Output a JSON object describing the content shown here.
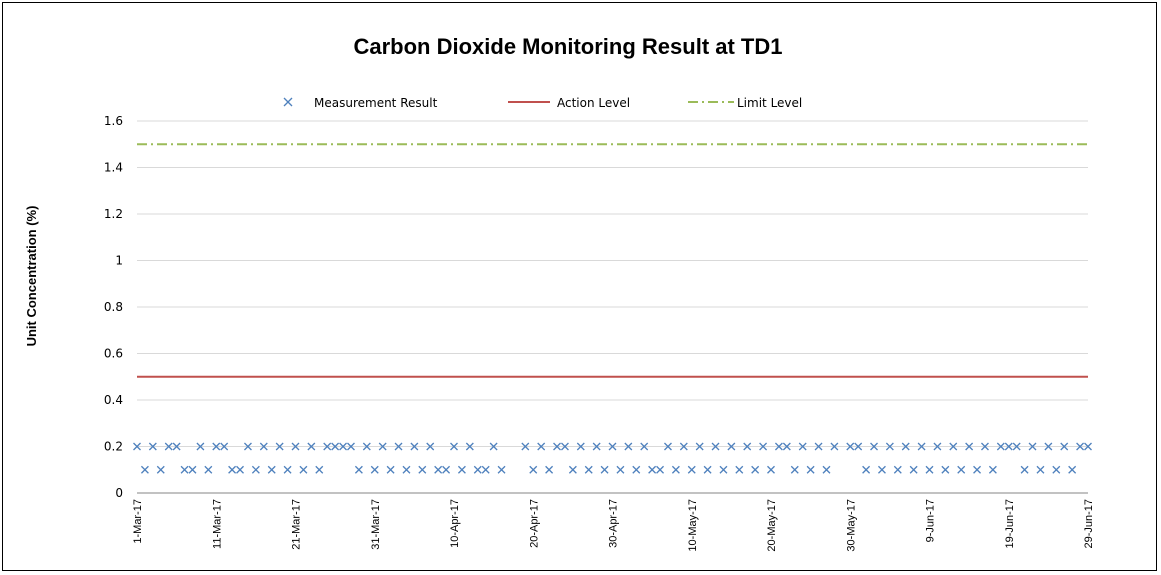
{
  "chart_data": {
    "type": "scatter",
    "title": "Carbon Dioxide Monitoring Result at TD1",
    "ylabel": "Unit Concentration (%)",
    "xlabel": "",
    "ylim": [
      0,
      1.6
    ],
    "yticks": [
      "0",
      "0.2",
      "0.4",
      "0.6",
      "0.8",
      "1",
      "1.2",
      "1.4",
      "1.6"
    ],
    "xlim": [
      "1-Mar-17",
      "29-Jun-17"
    ],
    "xticks": [
      "1-Mar-17",
      "11-Mar-17",
      "21-Mar-17",
      "31-Mar-17",
      "10-Apr-17",
      "20-Apr-17",
      "30-Apr-17",
      "10-May-17",
      "20-May-17",
      "30-May-17",
      "9-Jun-17",
      "19-Jun-17",
      "29-Jun-17"
    ],
    "grid": "horizontal",
    "legend_position": "top",
    "series": [
      {
        "name": "Measurement Result",
        "kind": "scatter",
        "marker": "x",
        "color": "#4F81BD",
        "points": [
          {
            "x": "1-Mar-17",
            "y": 0.2
          },
          {
            "x": "2-Mar-17",
            "y": 0.1
          },
          {
            "x": "3-Mar-17",
            "y": 0.2
          },
          {
            "x": "4-Mar-17",
            "y": 0.1
          },
          {
            "x": "5-Mar-17",
            "y": 0.2
          },
          {
            "x": "6-Mar-17",
            "y": 0.2
          },
          {
            "x": "7-Mar-17",
            "y": 0.1
          },
          {
            "x": "8-Mar-17",
            "y": 0.1
          },
          {
            "x": "9-Mar-17",
            "y": 0.2
          },
          {
            "x": "10-Mar-17",
            "y": 0.1
          },
          {
            "x": "11-Mar-17",
            "y": 0.2
          },
          {
            "x": "12-Mar-17",
            "y": 0.2
          },
          {
            "x": "13-Mar-17",
            "y": 0.1
          },
          {
            "x": "14-Mar-17",
            "y": 0.1
          },
          {
            "x": "15-Mar-17",
            "y": 0.2
          },
          {
            "x": "16-Mar-17",
            "y": 0.1
          },
          {
            "x": "17-Mar-17",
            "y": 0.2
          },
          {
            "x": "18-Mar-17",
            "y": 0.1
          },
          {
            "x": "19-Mar-17",
            "y": 0.2
          },
          {
            "x": "20-Mar-17",
            "y": 0.1
          },
          {
            "x": "21-Mar-17",
            "y": 0.2
          },
          {
            "x": "22-Mar-17",
            "y": 0.1
          },
          {
            "x": "23-Mar-17",
            "y": 0.2
          },
          {
            "x": "24-Mar-17",
            "y": 0.1
          },
          {
            "x": "25-Mar-17",
            "y": 0.2
          },
          {
            "x": "26-Mar-17",
            "y": 0.2
          },
          {
            "x": "27-Mar-17",
            "y": 0.2
          },
          {
            "x": "28-Mar-17",
            "y": 0.2
          },
          {
            "x": "29-Mar-17",
            "y": 0.1
          },
          {
            "x": "30-Mar-17",
            "y": 0.2
          },
          {
            "x": "31-Mar-17",
            "y": 0.1
          },
          {
            "x": "1-Apr-17",
            "y": 0.2
          },
          {
            "x": "2-Apr-17",
            "y": 0.1
          },
          {
            "x": "3-Apr-17",
            "y": 0.2
          },
          {
            "x": "4-Apr-17",
            "y": 0.1
          },
          {
            "x": "5-Apr-17",
            "y": 0.2
          },
          {
            "x": "6-Apr-17",
            "y": 0.1
          },
          {
            "x": "7-Apr-17",
            "y": 0.2
          },
          {
            "x": "8-Apr-17",
            "y": 0.1
          },
          {
            "x": "9-Apr-17",
            "y": 0.1
          },
          {
            "x": "10-Apr-17",
            "y": 0.2
          },
          {
            "x": "11-Apr-17",
            "y": 0.1
          },
          {
            "x": "12-Apr-17",
            "y": 0.2
          },
          {
            "x": "13-Apr-17",
            "y": 0.1
          },
          {
            "x": "14-Apr-17",
            "y": 0.1
          },
          {
            "x": "15-Apr-17",
            "y": 0.2
          },
          {
            "x": "16-Apr-17",
            "y": 0.1
          },
          {
            "x": "19-Apr-17",
            "y": 0.2
          },
          {
            "x": "20-Apr-17",
            "y": 0.1
          },
          {
            "x": "21-Apr-17",
            "y": 0.2
          },
          {
            "x": "22-Apr-17",
            "y": 0.1
          },
          {
            "x": "23-Apr-17",
            "y": 0.2
          },
          {
            "x": "24-Apr-17",
            "y": 0.2
          },
          {
            "x": "25-Apr-17",
            "y": 0.1
          },
          {
            "x": "26-Apr-17",
            "y": 0.2
          },
          {
            "x": "27-Apr-17",
            "y": 0.1
          },
          {
            "x": "28-Apr-17",
            "y": 0.2
          },
          {
            "x": "29-Apr-17",
            "y": 0.1
          },
          {
            "x": "30-Apr-17",
            "y": 0.2
          },
          {
            "x": "1-May-17",
            "y": 0.1
          },
          {
            "x": "2-May-17",
            "y": 0.2
          },
          {
            "x": "3-May-17",
            "y": 0.1
          },
          {
            "x": "4-May-17",
            "y": 0.2
          },
          {
            "x": "5-May-17",
            "y": 0.1
          },
          {
            "x": "6-May-17",
            "y": 0.1
          },
          {
            "x": "7-May-17",
            "y": 0.2
          },
          {
            "x": "8-May-17",
            "y": 0.1
          },
          {
            "x": "9-May-17",
            "y": 0.2
          },
          {
            "x": "10-May-17",
            "y": 0.1
          },
          {
            "x": "11-May-17",
            "y": 0.2
          },
          {
            "x": "12-May-17",
            "y": 0.1
          },
          {
            "x": "13-May-17",
            "y": 0.2
          },
          {
            "x": "14-May-17",
            "y": 0.1
          },
          {
            "x": "15-May-17",
            "y": 0.2
          },
          {
            "x": "16-May-17",
            "y": 0.1
          },
          {
            "x": "17-May-17",
            "y": 0.2
          },
          {
            "x": "18-May-17",
            "y": 0.1
          },
          {
            "x": "19-May-17",
            "y": 0.2
          },
          {
            "x": "20-May-17",
            "y": 0.1
          },
          {
            "x": "21-May-17",
            "y": 0.2
          },
          {
            "x": "22-May-17",
            "y": 0.2
          },
          {
            "x": "23-May-17",
            "y": 0.1
          },
          {
            "x": "24-May-17",
            "y": 0.2
          },
          {
            "x": "25-May-17",
            "y": 0.1
          },
          {
            "x": "26-May-17",
            "y": 0.2
          },
          {
            "x": "27-May-17",
            "y": 0.1
          },
          {
            "x": "28-May-17",
            "y": 0.2
          },
          {
            "x": "30-May-17",
            "y": 0.2
          },
          {
            "x": "31-May-17",
            "y": 0.2
          },
          {
            "x": "1-Jun-17",
            "y": 0.1
          },
          {
            "x": "2-Jun-17",
            "y": 0.2
          },
          {
            "x": "3-Jun-17",
            "y": 0.1
          },
          {
            "x": "4-Jun-17",
            "y": 0.2
          },
          {
            "x": "5-Jun-17",
            "y": 0.1
          },
          {
            "x": "6-Jun-17",
            "y": 0.2
          },
          {
            "x": "7-Jun-17",
            "y": 0.1
          },
          {
            "x": "8-Jun-17",
            "y": 0.2
          },
          {
            "x": "9-Jun-17",
            "y": 0.1
          },
          {
            "x": "10-Jun-17",
            "y": 0.2
          },
          {
            "x": "11-Jun-17",
            "y": 0.1
          },
          {
            "x": "12-Jun-17",
            "y": 0.2
          },
          {
            "x": "13-Jun-17",
            "y": 0.1
          },
          {
            "x": "14-Jun-17",
            "y": 0.2
          },
          {
            "x": "15-Jun-17",
            "y": 0.1
          },
          {
            "x": "16-Jun-17",
            "y": 0.2
          },
          {
            "x": "17-Jun-17",
            "y": 0.1
          },
          {
            "x": "18-Jun-17",
            "y": 0.2
          },
          {
            "x": "19-Jun-17",
            "y": 0.2
          },
          {
            "x": "20-Jun-17",
            "y": 0.2
          },
          {
            "x": "21-Jun-17",
            "y": 0.1
          },
          {
            "x": "22-Jun-17",
            "y": 0.2
          },
          {
            "x": "23-Jun-17",
            "y": 0.1
          },
          {
            "x": "24-Jun-17",
            "y": 0.2
          },
          {
            "x": "25-Jun-17",
            "y": 0.1
          },
          {
            "x": "26-Jun-17",
            "y": 0.2
          },
          {
            "x": "27-Jun-17",
            "y": 0.1
          },
          {
            "x": "28-Jun-17",
            "y": 0.2
          },
          {
            "x": "29-Jun-17",
            "y": 0.2
          }
        ]
      },
      {
        "name": "Action Level",
        "kind": "line",
        "style": "solid",
        "color": "#C0504D",
        "value": 0.5
      },
      {
        "name": "Limit Level",
        "kind": "line",
        "style": "dash-dot",
        "color": "#9BBB59",
        "value": 1.5
      }
    ]
  }
}
